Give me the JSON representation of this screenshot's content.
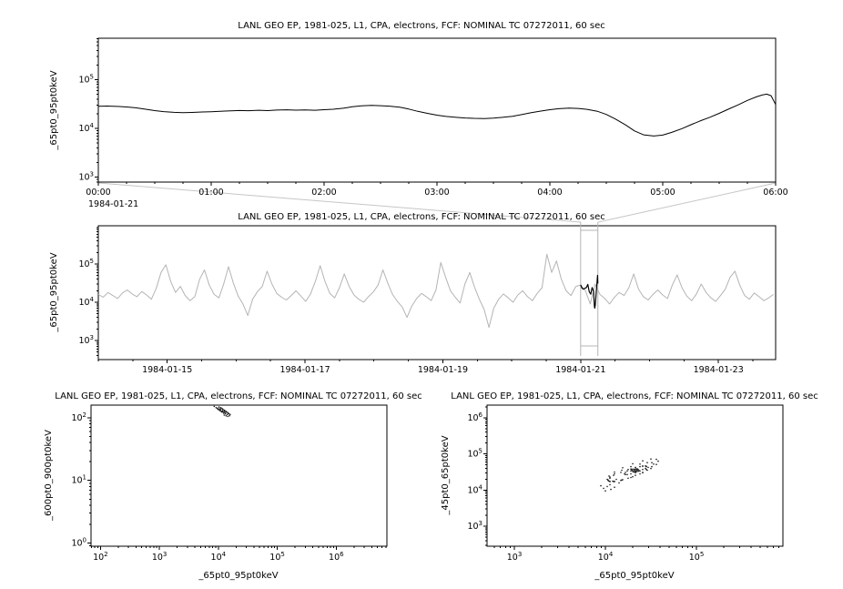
{
  "connector": {
    "color": "#c6c6c6"
  },
  "chart_data": [
    {
      "name": "zoomed-timeseries",
      "type": "line",
      "title": "LANL GEO EP, 1981-025, L1, CPA, electrons, FCF: NOMINAL TC 07272011, 60 sec",
      "ylabel": "_65pt0_95pt0keV",
      "date_label": "1984-01-21",
      "x_axis": {
        "type": "linear",
        "min": 0,
        "max": 6,
        "minor_step": 0.25,
        "ticks": [
          {
            "v": 0,
            "label": "00:00"
          },
          {
            "v": 1,
            "label": "01:00"
          },
          {
            "v": 2,
            "label": "02:00"
          },
          {
            "v": 3,
            "label": "03:00"
          },
          {
            "v": 4,
            "label": "04:00"
          },
          {
            "v": 5,
            "label": "05:00"
          },
          {
            "v": 6,
            "label": "06:00"
          }
        ]
      },
      "y_axis": {
        "type": "log",
        "min": 2.9,
        "max": 5.85,
        "tick_exps": [
          3,
          4,
          5
        ]
      },
      "line": {
        "color": "#000000",
        "points": [
          [
            0.0,
            28500
          ],
          [
            0.08,
            28800
          ],
          [
            0.17,
            28300
          ],
          [
            0.25,
            27600
          ],
          [
            0.33,
            26500
          ],
          [
            0.42,
            24800
          ],
          [
            0.5,
            23200
          ],
          [
            0.58,
            22100
          ],
          [
            0.67,
            21400
          ],
          [
            0.75,
            21000
          ],
          [
            0.83,
            21300
          ],
          [
            0.92,
            21800
          ],
          [
            1.0,
            22000
          ],
          [
            1.08,
            22400
          ],
          [
            1.17,
            22900
          ],
          [
            1.25,
            23300
          ],
          [
            1.33,
            23100
          ],
          [
            1.42,
            23600
          ],
          [
            1.5,
            23200
          ],
          [
            1.58,
            23800
          ],
          [
            1.67,
            24100
          ],
          [
            1.75,
            23700
          ],
          [
            1.83,
            24000
          ],
          [
            1.92,
            23600
          ],
          [
            2.0,
            24200
          ],
          [
            2.08,
            24800
          ],
          [
            2.17,
            26000
          ],
          [
            2.25,
            27800
          ],
          [
            2.33,
            29000
          ],
          [
            2.42,
            29600
          ],
          [
            2.5,
            29300
          ],
          [
            2.58,
            28600
          ],
          [
            2.67,
            27200
          ],
          [
            2.75,
            25000
          ],
          [
            2.83,
            22400
          ],
          [
            2.92,
            20300
          ],
          [
            3.0,
            18700
          ],
          [
            3.08,
            17600
          ],
          [
            3.17,
            16900
          ],
          [
            3.25,
            16400
          ],
          [
            3.33,
            16100
          ],
          [
            3.42,
            16000
          ],
          [
            3.5,
            16300
          ],
          [
            3.58,
            16900
          ],
          [
            3.67,
            17800
          ],
          [
            3.75,
            19200
          ],
          [
            3.83,
            20900
          ],
          [
            3.92,
            22700
          ],
          [
            4.0,
            24200
          ],
          [
            4.08,
            25400
          ],
          [
            4.17,
            26100
          ],
          [
            4.25,
            25700
          ],
          [
            4.33,
            24600
          ],
          [
            4.42,
            22500
          ],
          [
            4.5,
            19400
          ],
          [
            4.58,
            15600
          ],
          [
            4.67,
            11800
          ],
          [
            4.75,
            8900
          ],
          [
            4.83,
            7400
          ],
          [
            4.92,
            7000
          ],
          [
            5.0,
            7300
          ],
          [
            5.08,
            8300
          ],
          [
            5.17,
            9900
          ],
          [
            5.25,
            11900
          ],
          [
            5.33,
            14200
          ],
          [
            5.42,
            17000
          ],
          [
            5.5,
            20400
          ],
          [
            5.58,
            24800
          ],
          [
            5.67,
            30500
          ],
          [
            5.75,
            37500
          ],
          [
            5.83,
            44500
          ],
          [
            5.88,
            48500
          ],
          [
            5.92,
            50500
          ],
          [
            5.96,
            47000
          ],
          [
            6.0,
            31000
          ]
        ]
      }
    },
    {
      "name": "overview-timeseries",
      "type": "line",
      "title": "LANL GEO EP, 1981-025, L1, CPA, electrons, FCF: NOMINAL TC 07272011, 60 sec",
      "ylabel": "_65pt0_95pt0keV",
      "x_axis": {
        "type": "linear",
        "min": 14.0,
        "max": 23.83,
        "minor_step": 0.5,
        "ticks": [
          {
            "v": 15,
            "label": "1984-01-15"
          },
          {
            "v": 17,
            "label": "1984-01-17"
          },
          {
            "v": 19,
            "label": "1984-01-19"
          },
          {
            "v": 21,
            "label": "1984-01-21"
          },
          {
            "v": 23,
            "label": "1984-01-23"
          }
        ]
      },
      "y_axis": {
        "type": "log",
        "min": 2.5,
        "max": 6.0,
        "tick_exps": [
          3,
          4,
          5
        ]
      },
      "line": {
        "color": "#b4b4b4",
        "x_start": 14.0,
        "x_step": 0.07,
        "values": [
          16000,
          13500,
          18000,
          15000,
          12500,
          17500,
          21000,
          16500,
          14000,
          19000,
          15500,
          12000,
          23000,
          60000,
          95000,
          35000,
          18000,
          26000,
          15000,
          11000,
          14000,
          40000,
          70000,
          28000,
          16000,
          13000,
          30000,
          85000,
          32000,
          14500,
          9000,
          4500,
          12000,
          19000,
          26000,
          65000,
          30000,
          17000,
          13500,
          11500,
          15000,
          20000,
          14500,
          10500,
          16500,
          35000,
          90000,
          35000,
          17000,
          13000,
          24000,
          55000,
          26000,
          15500,
          12000,
          10000,
          14000,
          18500,
          28000,
          70000,
          32000,
          16000,
          10500,
          7500,
          4000,
          8000,
          12500,
          17000,
          14000,
          11000,
          21000,
          110000,
          45000,
          20000,
          13500,
          9500,
          30000,
          60000,
          25000,
          12000,
          6500,
          2200,
          7000,
          12000,
          16500,
          13000,
          10000,
          15500,
          20000,
          14000,
          11000,
          17000,
          24000,
          180000,
          60000,
          120000,
          40000,
          20000,
          15000,
          26000,
          28000,
          20000,
          9000,
          30000,
          16000,
          12500,
          9000,
          13500,
          18000,
          15000,
          24000,
          55000,
          22000,
          14000,
          11500,
          16000,
          21000,
          15500,
          12500,
          28000,
          52000,
          24000,
          14500,
          11000,
          16500,
          30000,
          18000,
          13000,
          10500,
          15000,
          22000,
          45000,
          65000,
          28000,
          15000,
          12000,
          17500,
          14000,
          11000,
          13000,
          16000
        ]
      },
      "highlight": {
        "color": "#000000",
        "points": [
          [
            21.0,
            28500
          ],
          [
            21.021,
            23200
          ],
          [
            21.042,
            22000
          ],
          [
            21.063,
            23200
          ],
          [
            21.083,
            24200
          ],
          [
            21.104,
            29300
          ],
          [
            21.125,
            18700
          ],
          [
            21.146,
            16300
          ],
          [
            21.167,
            24200
          ],
          [
            21.188,
            19400
          ],
          [
            21.2,
            8000
          ],
          [
            21.205,
            7000
          ],
          [
            21.213,
            8500
          ],
          [
            21.229,
            20400
          ],
          [
            21.246,
            50500
          ],
          [
            21.25,
            31000
          ]
        ]
      },
      "selection": {
        "x_from": 21.0,
        "x_to": 21.25,
        "color": "#b4b4b4"
      }
    },
    {
      "name": "scatter-600-900",
      "type": "scatter",
      "title": "LANL GEO EP, 1981-025, L1, CPA, electrons, FCF: NOMINAL TC 07272011, 60 sec",
      "xlabel": "_65pt0_95pt0keV",
      "ylabel": "_600pt0_900pt0keV",
      "x_axis": {
        "type": "log",
        "min": 1.84,
        "max": 6.86,
        "tick_exps": [
          2,
          3,
          4,
          5,
          6
        ]
      },
      "y_axis": {
        "type": "log",
        "min": -0.05,
        "max": 2.2,
        "tick_exps": [
          0,
          1,
          2
        ]
      },
      "scatter": {
        "color": "#1a1a1a",
        "log_points": [
          [
            3.93,
            2.18
          ],
          [
            3.96,
            2.16
          ],
          [
            3.99,
            2.14
          ],
          [
            4.02,
            2.12
          ],
          [
            4.05,
            2.1
          ],
          [
            4.08,
            2.09
          ],
          [
            4.11,
            2.08
          ],
          [
            4.13,
            2.1
          ],
          [
            4.1,
            2.12
          ],
          [
            4.07,
            2.14
          ],
          [
            4.04,
            2.16
          ],
          [
            4.01,
            2.17
          ],
          [
            3.98,
            2.15
          ],
          [
            4.0,
            2.13
          ],
          [
            4.03,
            2.11
          ],
          [
            4.06,
            2.09
          ],
          [
            4.09,
            2.07
          ],
          [
            4.12,
            2.06
          ],
          [
            4.15,
            2.05
          ],
          [
            4.18,
            2.06
          ],
          [
            4.16,
            2.08
          ],
          [
            4.13,
            2.09
          ],
          [
            4.1,
            2.1
          ],
          [
            4.07,
            2.11
          ],
          [
            4.04,
            2.13
          ],
          [
            4.02,
            2.14
          ],
          [
            4.05,
            2.15
          ],
          [
            4.08,
            2.13
          ],
          [
            4.11,
            2.11
          ],
          [
            4.14,
            2.09
          ],
          [
            4.17,
            2.07
          ],
          [
            4.2,
            2.05
          ],
          [
            4.19,
            2.03
          ],
          [
            4.16,
            2.02
          ],
          [
            4.13,
            2.03
          ],
          [
            4.1,
            2.04
          ]
        ]
      }
    },
    {
      "name": "scatter-45-65",
      "type": "scatter",
      "title": "LANL GEO EP, 1981-025, L1, CPA, electrons, FCF: NOMINAL TC 07272011, 60 sec",
      "xlabel": "_65pt0_95pt0keV",
      "ylabel": "_45pt0_65pt0keV",
      "x_axis": {
        "type": "log",
        "min": 2.7,
        "max": 5.95,
        "tick_exps": [
          3,
          4,
          5
        ]
      },
      "y_axis": {
        "type": "log",
        "min": 2.45,
        "max": 6.35,
        "tick_exps": [
          3,
          4,
          5,
          6
        ]
      },
      "scatter": {
        "color": "#1a1a1a",
        "log_points": [
          [
            4.58,
            4.8
          ],
          [
            4.56,
            4.85
          ],
          [
            4.5,
            4.86
          ],
          [
            4.41,
            4.81
          ],
          [
            4.3,
            4.73
          ],
          [
            4.19,
            4.62
          ],
          [
            4.1,
            4.5
          ],
          [
            4.04,
            4.39
          ],
          [
            4.02,
            4.3
          ],
          [
            4.04,
            4.25
          ],
          [
            4.1,
            4.24
          ],
          [
            4.19,
            4.29
          ],
          [
            4.3,
            4.37
          ],
          [
            4.41,
            4.48
          ],
          [
            4.5,
            4.6
          ],
          [
            4.56,
            4.71
          ],
          [
            4.53,
            4.72
          ],
          [
            4.51,
            4.76
          ],
          [
            4.46,
            4.76
          ],
          [
            4.38,
            4.72
          ],
          [
            4.28,
            4.65
          ],
          [
            4.18,
            4.55
          ],
          [
            4.1,
            4.45
          ],
          [
            4.05,
            4.36
          ],
          [
            4.03,
            4.28
          ],
          [
            4.05,
            4.24
          ],
          [
            4.1,
            4.24
          ],
          [
            4.18,
            4.28
          ],
          [
            4.28,
            4.35
          ],
          [
            4.38,
            4.45
          ],
          [
            4.46,
            4.55
          ],
          [
            4.51,
            4.65
          ],
          [
            4.47,
            4.63
          ],
          [
            4.45,
            4.66
          ],
          [
            4.41,
            4.66
          ],
          [
            4.33,
            4.63
          ],
          [
            4.25,
            4.57
          ],
          [
            4.17,
            4.49
          ],
          [
            4.09,
            4.41
          ],
          [
            4.05,
            4.33
          ],
          [
            4.03,
            4.27
          ],
          [
            4.05,
            4.24
          ],
          [
            4.09,
            4.24
          ],
          [
            4.17,
            4.27
          ],
          [
            4.25,
            4.33
          ],
          [
            4.33,
            4.41
          ],
          [
            4.41,
            4.49
          ],
          [
            4.45,
            4.57
          ],
          [
            4.45,
            4.65
          ],
          [
            4.44,
            4.67
          ],
          [
            4.41,
            4.67
          ],
          [
            4.38,
            4.65
          ],
          [
            4.33,
            4.62
          ],
          [
            4.28,
            4.58
          ],
          [
            4.24,
            4.53
          ],
          [
            4.22,
            4.49
          ],
          [
            4.21,
            4.45
          ],
          [
            4.22,
            4.43
          ],
          [
            4.24,
            4.43
          ],
          [
            4.28,
            4.45
          ],
          [
            4.33,
            4.48
          ],
          [
            4.38,
            4.53
          ],
          [
            4.41,
            4.57
          ],
          [
            4.44,
            4.6
          ],
          [
            4.3,
            4.54
          ],
          [
            4.32,
            4.56
          ],
          [
            4.34,
            4.53
          ],
          [
            4.36,
            4.57
          ],
          [
            4.31,
            4.58
          ],
          [
            4.33,
            4.52
          ],
          [
            4.35,
            4.55
          ],
          [
            4.29,
            4.56
          ],
          [
            4.37,
            4.54
          ],
          [
            4.32,
            4.51
          ],
          [
            4.34,
            4.58
          ],
          [
            4.3,
            4.52
          ],
          [
            4.36,
            4.52
          ],
          [
            4.28,
            4.53
          ],
          [
            4.33,
            4.57
          ],
          [
            4.35,
            4.59
          ],
          [
            4.31,
            4.5
          ],
          [
            4.34,
            4.51
          ],
          [
            4.29,
            4.58
          ],
          [
            4.32,
            4.55
          ],
          [
            3.98,
            4.05
          ],
          [
            4.02,
            4.1
          ],
          [
            4.06,
            4.02
          ],
          [
            3.95,
            4.12
          ],
          [
            4.1,
            4.08
          ],
          [
            4.0,
            3.98
          ],
          [
            4.05,
            4.15
          ],
          [
            4.15,
            4.2
          ],
          [
            4.12,
            4.3
          ],
          [
            4.08,
            4.25
          ]
        ]
      }
    }
  ]
}
